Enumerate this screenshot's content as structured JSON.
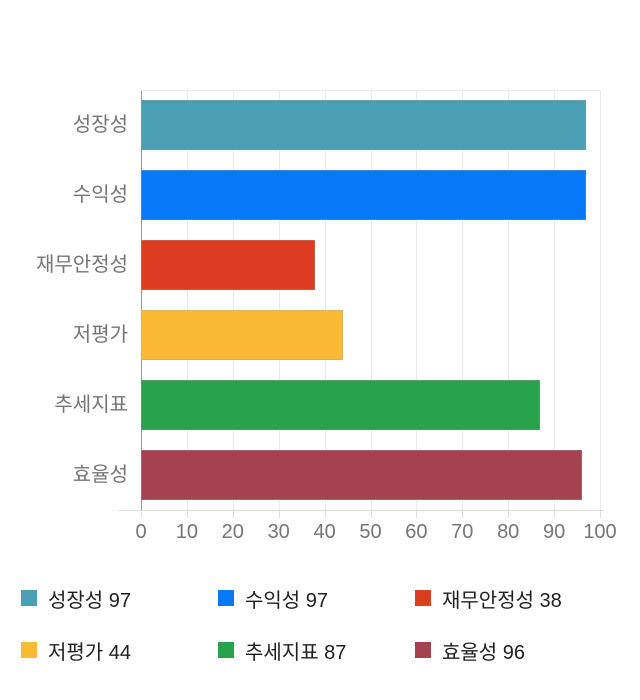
{
  "chart_data": {
    "type": "bar",
    "orientation": "horizontal",
    "categories": [
      "성장성",
      "수익성",
      "재무안정성",
      "저평가",
      "추세지표",
      "효율성"
    ],
    "values": [
      97,
      97,
      38,
      44,
      87,
      96
    ],
    "colors": [
      "#4A9FB5",
      "#0778F8",
      "#DC3C20",
      "#FCB935",
      "#28A24B",
      "#A4424F"
    ],
    "xlim": [
      0,
      100
    ],
    "xticks": [
      0,
      10,
      20,
      30,
      40,
      50,
      60,
      70,
      80,
      90,
      100
    ],
    "grid": true,
    "legend_position": "bottom"
  },
  "legend": {
    "items": [
      {
        "label": "성장성 97"
      },
      {
        "label": "수익성 97"
      },
      {
        "label": "재무안정성 38"
      },
      {
        "label": "저평가 44"
      },
      {
        "label": "추세지표 87"
      },
      {
        "label": "효율성 96"
      }
    ]
  }
}
